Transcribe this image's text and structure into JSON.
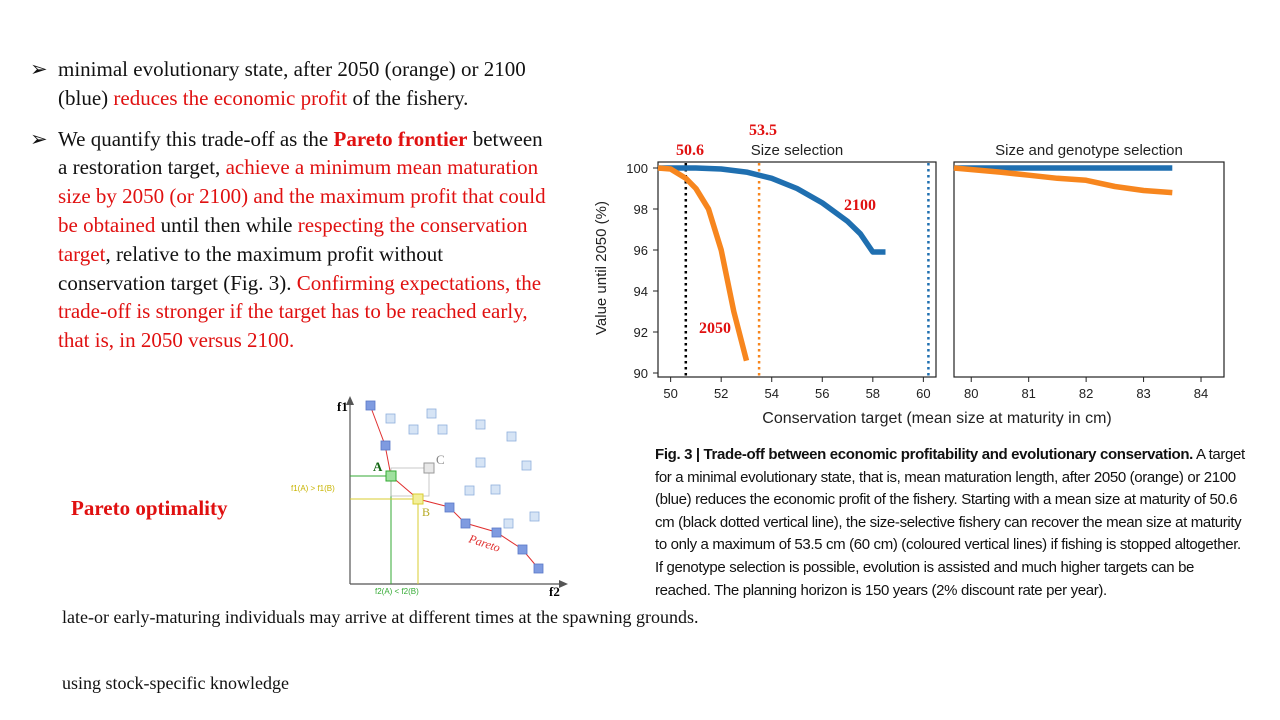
{
  "bullets": [
    {
      "mark": "➢",
      "segments": [
        {
          "text": "minimal evolutionary state, after 2050 (orange) or 2100 (blue) ",
          "style": "normal"
        },
        {
          "text": "reduces the economic profit",
          "style": "red"
        },
        {
          "text": " of the fishery.",
          "style": "normal"
        }
      ]
    },
    {
      "mark": "➢",
      "segments": [
        {
          "text": "We quantify this trade-off as the ",
          "style": "normal"
        },
        {
          "text": "Pareto frontier",
          "style": "red-bold"
        },
        {
          "text": " between a restoration target, ",
          "style": "normal"
        },
        {
          "text": " achieve a minimum mean maturation size by 2050 (or 2100) and the maximum profit that could be obtained",
          "style": "red"
        },
        {
          "text": " until then while ",
          "style": "normal"
        },
        {
          "text": "respecting the conservation target",
          "style": "red"
        },
        {
          "text": ", relative to the maximum profit without conservation target (Fig. 3). ",
          "style": "normal"
        },
        {
          "text": "Confirming expectations, the trade-off is stronger if the target has to be reached early, that is, in 2050 versus 2100.",
          "style": "red"
        }
      ]
    }
  ],
  "pareto_title": "Pareto optimality",
  "notes": [
    "late-or early-maturing individuals may arrive at different times at the spawning grounds.",
    "using stock-specific knowledge"
  ],
  "pareto_diagram": {
    "axis_y": "f1",
    "axis_x": "f2",
    "point_a": "A",
    "point_b": "B",
    "point_c": "C",
    "label_f1": "f1(A) > f1(B)",
    "label_f2": "f2(A) < f2(B)",
    "front_label": "Pareto",
    "colors": {
      "front": "#e03030",
      "a_point": "#33aa33",
      "b_point": "#d8cc30",
      "squares": "#a8c4e8"
    }
  },
  "chart_annotations": {
    "label_506": "50.6",
    "label_535": "53.5",
    "label_2100": "2100",
    "label_2050": "2050"
  },
  "chart_data": [
    {
      "type": "line",
      "title": "Size selection",
      "xlabel": "Conservation target (mean size at maturity in cm)",
      "ylabel": "Value until 2050 (%)",
      "xlim": [
        49.5,
        60.5
      ],
      "ylim": [
        90,
        100
      ],
      "xticks": [
        "50",
        "52",
        "54",
        "56",
        "58",
        "60"
      ],
      "yticks": [
        "90",
        "92",
        "94",
        "96",
        "98",
        "100"
      ],
      "series": [
        {
          "name": "2100",
          "color": "#1f6fb0",
          "x": [
            49.5,
            51.0,
            52.0,
            53.0,
            54.0,
            55.0,
            56.0,
            57.0,
            57.5,
            58.0,
            58.5
          ],
          "y": [
            100,
            100,
            99.95,
            99.8,
            99.5,
            99.0,
            98.3,
            97.4,
            96.8,
            95.9,
            95.9
          ]
        },
        {
          "name": "2050",
          "color": "#f7861e",
          "x": [
            49.5,
            50.0,
            50.6,
            51.0,
            51.5,
            52.0,
            52.5,
            53.0
          ],
          "y": [
            100,
            99.95,
            99.5,
            99.0,
            98.0,
            96.0,
            93.0,
            90.6
          ]
        }
      ],
      "vlines": [
        {
          "x": 50.6,
          "color": "#000000"
        },
        {
          "x": 53.5,
          "color": "#f7861e"
        },
        {
          "x": 60.2,
          "color": "#1f6fb0"
        }
      ]
    },
    {
      "type": "line",
      "title": "Size and genotype selection",
      "xlim": [
        79.7,
        84.4
      ],
      "ylim": [
        90,
        100
      ],
      "xticks": [
        "80",
        "81",
        "82",
        "83",
        "84"
      ],
      "series": [
        {
          "name": "2100",
          "color": "#1f6fb0",
          "x": [
            79.7,
            83.5
          ],
          "y": [
            100,
            100
          ]
        },
        {
          "name": "2050",
          "color": "#f7861e",
          "x": [
            79.7,
            80.5,
            81.0,
            81.5,
            82.0,
            82.5,
            83.0,
            83.5
          ],
          "y": [
            100,
            99.8,
            99.65,
            99.5,
            99.4,
            99.1,
            98.9,
            98.8
          ]
        }
      ]
    }
  ],
  "caption": {
    "bold": "Fig. 3 | Trade-off between economic profitability and evolutionary conservation.",
    "text": " A target for a minimal evolutionary state, that is, mean maturation length, after 2050 (orange) or 2100 (blue) reduces the economic profit of the fishery. Starting with a mean size at maturity of 50.6 cm (black dotted vertical line), the size-selective fishery can recover the mean size at maturity to only a maximum of 53.5 cm (60 cm) (coloured vertical lines) if fishing is stopped altogether. If genotype selection is possible, evolution is assisted and much higher targets can be reached. The planning horizon is 150 years (2% discount rate per year)."
  }
}
